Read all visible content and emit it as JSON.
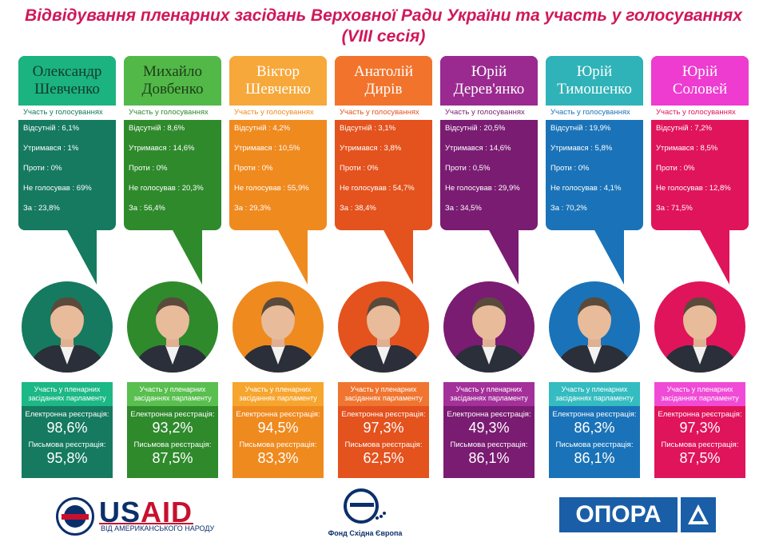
{
  "title": {
    "line1": "Відвідування пленарних засідань Верховної Ради України та участь у голосуваннях",
    "line2": "(VIII сесія)"
  },
  "deputies": [
    {
      "first": "Олександр",
      "last": "Шевченко",
      "color": "#157a60",
      "name_bg": "#1bb37f",
      "name_fg": "#123a2c",
      "accent": "#1cb885",
      "votes_header": "Участь у голосуваннях",
      "absent": "Відсутній : 6,1%",
      "abstained": "Утримався : 1%",
      "against": "Проти : 0%",
      "not_voted": "Не голосував : 69%",
      "for": "За : 23,8%",
      "plenary_header": "Участь у пленарних засіданнях парламенту",
      "e_label": "Електронна реєстрація:",
      "e_value": "98,6%",
      "w_label": "Письмова реєстрація:",
      "w_value": "95,8%"
    },
    {
      "first": "Михайло",
      "last": "Довбенко",
      "color": "#2f8a2c",
      "name_bg": "#52b948",
      "name_fg": "#1c3d18",
      "accent": "#59bf4f",
      "votes_header": "Участь у голосуваннях",
      "absent": "Відсутній : 8,6%",
      "abstained": "Утримався : 14,6%",
      "against": "Проти : 0%",
      "not_voted": "Не голосував : 20,3%",
      "for": "За : 56,4%",
      "plenary_header": "Участь у пленарних засіданнях парламенту",
      "e_label": "Електронна реєстрація:",
      "e_value": "93,2%",
      "w_label": "Письмова реєстрація:",
      "w_value": "87,5%"
    },
    {
      "first": "Віктор",
      "last": "Шевченко",
      "color": "#ef8a1f",
      "name_bg": "#f7a83a",
      "name_fg": "#ffffff",
      "accent": "#f6a52f",
      "votes_header": "Участь у голосуваннях",
      "absent": "Відсутній : 4,2%",
      "abstained": "Утримався : 10,5%",
      "against": "Проти : 0%",
      "not_voted": "Не голосував : 55,9%",
      "for": "За : 29,3%",
      "plenary_header": "Участь у пленарних засіданнях парламенту",
      "e_label": "Електронна реєстрація:",
      "e_value": "94,5%",
      "w_label": "Письмова реєстрація:",
      "w_value": "83,3%"
    },
    {
      "first": "Анатолій",
      "last": "Дирів",
      "color": "#e4521d",
      "name_bg": "#f2742c",
      "name_fg": "#ffffff",
      "accent": "#f07530",
      "votes_header": "Участь у голосуваннях",
      "absent": "Відсутній : 3,1%",
      "abstained": "Утримався : 3,8%",
      "against": "Проти : 0%",
      "not_voted": "Не голосував : 54,7%",
      "for": "За : 38,4%",
      "plenary_header": "Участь у пленарних засіданнях парламенту",
      "e_label": "Електронна реєстрація:",
      "e_value": "97,3%",
      "w_label": "Письмова реєстрація:",
      "w_value": "62,5%"
    },
    {
      "first": "Юрій",
      "last": "Дерев'янко",
      "color": "#7a1c72",
      "name_bg": "#9a2a8f",
      "name_fg": "#ffffff",
      "accent": "#a4309a",
      "votes_header": "Участь у голосуваннях",
      "absent": "Відсутній : 20,5%",
      "abstained": "Утримався : 14,6%",
      "against": "Проти : 0,5%",
      "not_voted": "Не голосував : 29,9%",
      "for": "За : 34,5%",
      "plenary_header": "Участь у пленарних засіданнях парламенту",
      "e_label": "Електронна реєстрація:",
      "e_value": "49,3%",
      "w_label": "Письмова реєстрація:",
      "w_value": "86,1%"
    },
    {
      "first": "Юрій",
      "last": "Тимошенко",
      "color": "#1a73b8",
      "name_bg": "#2fb3b8",
      "name_fg": "#ffffff",
      "accent": "#34bcc0",
      "votes_header": "Участь у голосуваннях",
      "absent": "Відсутній : 19,9%",
      "abstained": "Утримався : 5,8%",
      "against": "Проти : 0%",
      "not_voted": "Не голосував : 4,1%",
      "for": "За : 70,2%",
      "plenary_header": "Участь у пленарних засіданнях парламенту",
      "e_label": "Електронна реєстрація:",
      "e_value": "86,3%",
      "w_label": "Письмова реєстрація:",
      "w_value": "86,1%"
    },
    {
      "first": "Юрій",
      "last": "Соловей",
      "color": "#e0145a",
      "name_bg": "#ee3bd0",
      "name_fg": "#ffffff",
      "accent": "#f04bd6",
      "votes_header": "Участь у голосуваннях",
      "absent": "Відсутній : 7,2%",
      "abstained": "Утримався : 8,5%",
      "against": "Проти : 0%",
      "not_voted": "Не голосував : 12,8%",
      "for": "За : 71,5%",
      "plenary_header": "Участь у пленарних засіданнях парламенту",
      "e_label": "Електронна реєстрація:",
      "e_value": "97,3%",
      "w_label": "Письмова реєстрація:",
      "w_value": "87,5%"
    }
  ],
  "footer": {
    "usaid_us": "US",
    "usaid_aid": "AID",
    "usaid_sub": "ВІД АМЕРИКАНСЬКОГО НАРОДУ",
    "eef": "Фонд Східна Європа",
    "opora": "ОПОРА"
  },
  "icons": [
    "usaid-seal-icon",
    "eef-logo-icon",
    "opora-triangle-icon",
    "person-photo-icon"
  ]
}
